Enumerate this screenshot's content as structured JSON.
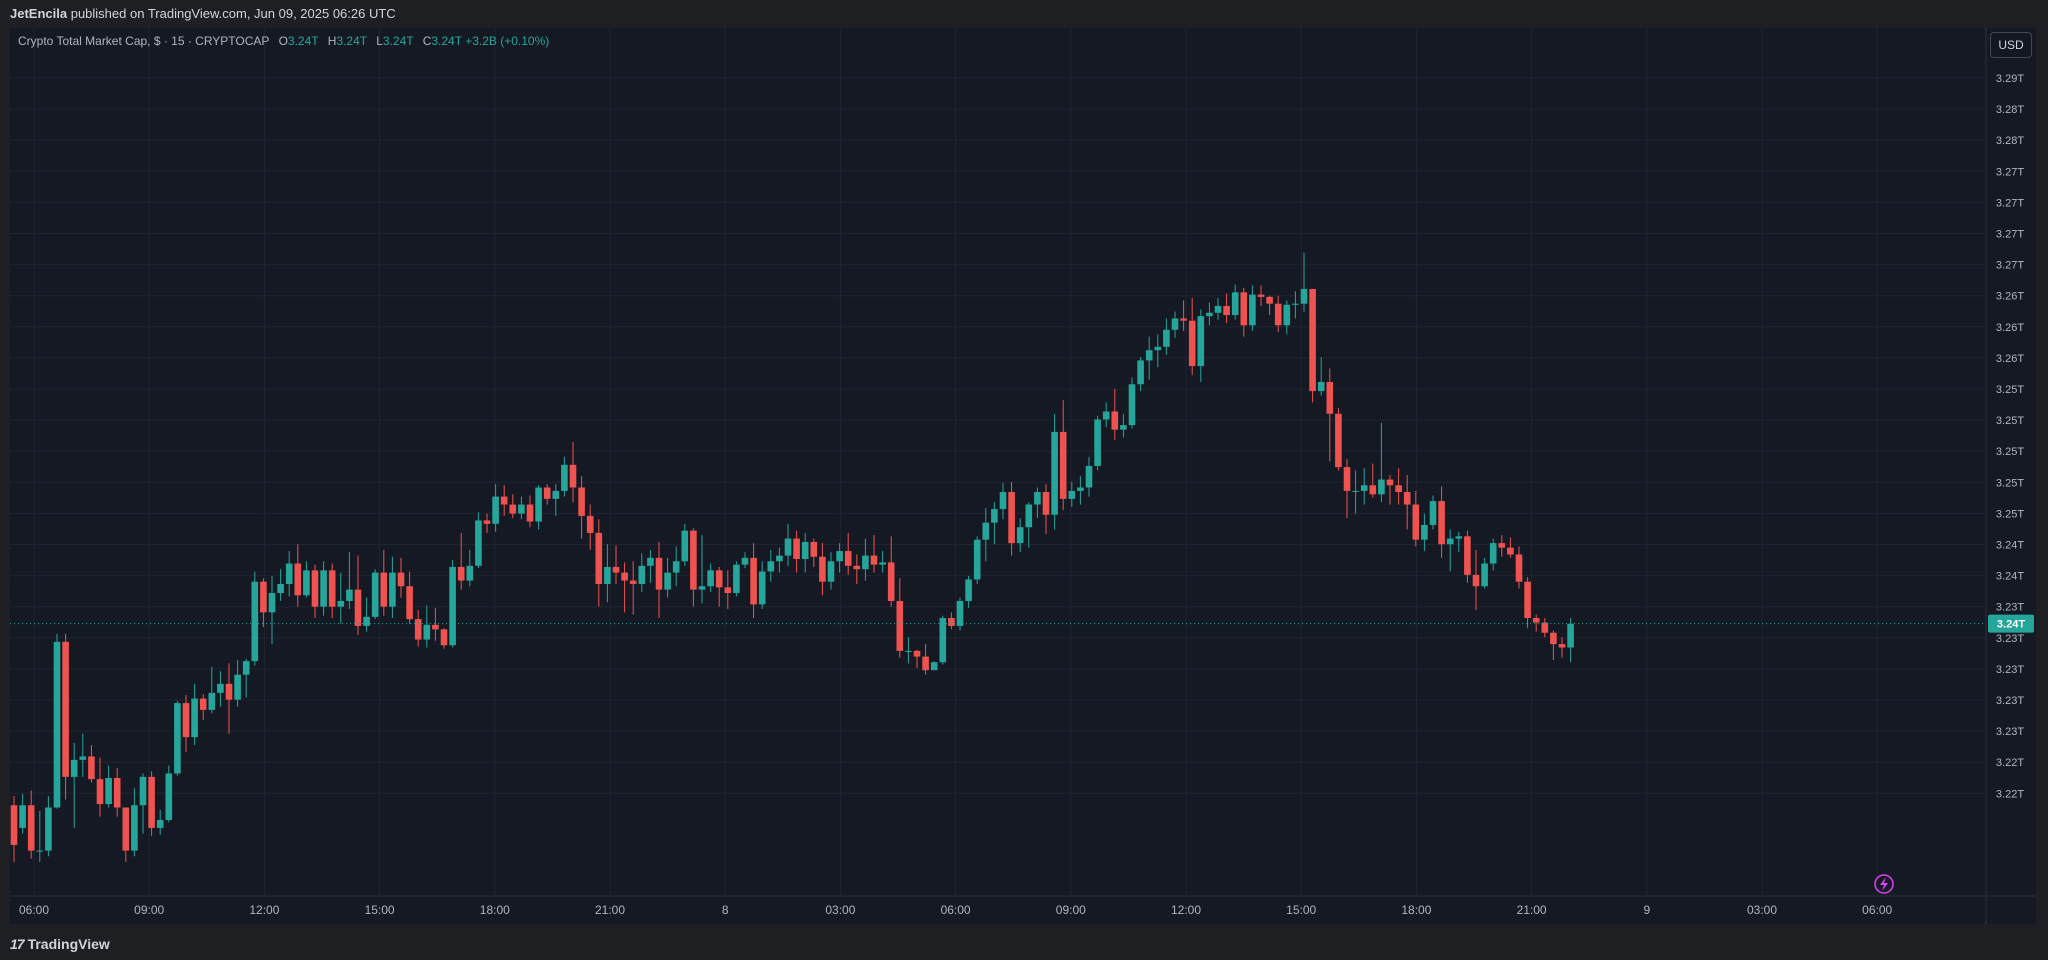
{
  "publish_line": {
    "author": "JetEncila",
    "text": "published on TradingView.com, Jun 09, 2025 06:26 UTC"
  },
  "legend": {
    "symbol": "Crypto Total Market Cap, $ · 15 · CRYPTOCAP",
    "o_label": "O",
    "o_value": "3.24T",
    "h_label": "H",
    "h_value": "3.24T",
    "l_label": "L",
    "l_value": "3.24T",
    "c_label": "C",
    "c_value": "3.24T",
    "change": "+3.2B (+0.10%)"
  },
  "currency_button": "USD",
  "price_axis": {
    "labels": [
      "3.29T",
      "3.28T",
      "3.28T",
      "3.27T",
      "3.27T",
      "3.27T",
      "3.27T",
      "3.26T",
      "3.26T",
      "3.26T",
      "3.25T",
      "3.25T",
      "3.25T",
      "3.25T",
      "3.25T",
      "3.24T",
      "3.24T",
      "3.23T",
      "3.23T",
      "3.23T",
      "3.23T",
      "3.23T",
      "3.22T",
      "3.22T"
    ],
    "current_price": "3.24T"
  },
  "time_axis": {
    "labels": [
      "06:00",
      "09:00",
      "12:00",
      "15:00",
      "18:00",
      "21:00",
      "8",
      "03:00",
      "06:00",
      "09:00",
      "12:00",
      "15:00",
      "18:00",
      "21:00",
      "9",
      "03:00",
      "06:00"
    ]
  },
  "colors": {
    "up": "#26a69a",
    "down": "#ef5350",
    "background": "#151924",
    "grid": "#1f2430"
  },
  "footer": {
    "brand": "TradingView"
  },
  "chart_data": {
    "type": "candlestick",
    "title": "Crypto Total Market Cap, $ · 15 · CRYPTOCAP",
    "interval": "15",
    "unit": "USD",
    "ylim": [
      3.2185,
      3.292
    ],
    "start_label": "06:00",
    "x_ticks": [
      "06:00",
      "09:00",
      "12:00",
      "15:00",
      "18:00",
      "21:00",
      "8",
      "03:00",
      "06:00",
      "09:00",
      "12:00",
      "15:00",
      "18:00",
      "21:00",
      "9",
      "03:00",
      "06:00"
    ],
    "current_price": 3.2425,
    "candles": [
      [
        3.2265,
        3.2273,
        3.2215,
        3.223
      ],
      [
        3.2245,
        3.2275,
        3.224,
        3.2265
      ],
      [
        3.2265,
        3.2278,
        3.2218,
        3.2225
      ],
      [
        3.2225,
        3.226,
        3.2215,
        3.2225
      ],
      [
        3.2225,
        3.2273,
        3.222,
        3.2263
      ],
      [
        3.2263,
        3.2416,
        3.2262,
        3.2409
      ],
      [
        3.2409,
        3.2416,
        3.227,
        3.229
      ],
      [
        3.229,
        3.232,
        3.2245,
        3.2305
      ],
      [
        3.2305,
        3.2328,
        3.229,
        3.2308
      ],
      [
        3.2308,
        3.2318,
        3.2285,
        3.2288
      ],
      [
        3.2288,
        3.2307,
        3.2255,
        3.2266
      ],
      [
        3.2266,
        3.23,
        3.2263,
        3.2289
      ],
      [
        3.2289,
        3.2298,
        3.2255,
        3.2263
      ],
      [
        3.2263,
        3.2263,
        3.2215,
        3.2225
      ],
      [
        3.2225,
        3.228,
        3.222,
        3.2265
      ],
      [
        3.2265,
        3.2293,
        3.224,
        3.229
      ],
      [
        3.229,
        3.2295,
        3.2238,
        3.2245
      ],
      [
        3.2245,
        3.2261,
        3.2239,
        3.2252
      ],
      [
        3.2252,
        3.23,
        3.225,
        3.2293
      ],
      [
        3.2293,
        3.2357,
        3.2291,
        3.2355
      ],
      [
        3.2355,
        3.2362,
        3.2312,
        3.2325
      ],
      [
        3.2325,
        3.2372,
        3.2318,
        3.2359
      ],
      [
        3.2359,
        3.2363,
        3.234,
        3.2349
      ],
      [
        3.2349,
        3.2387,
        3.2346,
        3.2364
      ],
      [
        3.2364,
        3.2383,
        3.2352,
        3.2372
      ],
      [
        3.2372,
        3.239,
        3.2328,
        3.2358
      ],
      [
        3.2358,
        3.2393,
        3.2352,
        3.238
      ],
      [
        3.238,
        3.2394,
        3.236,
        3.2392
      ],
      [
        3.2392,
        3.2471,
        3.2388,
        3.2462
      ],
      [
        3.2462,
        3.2465,
        3.2422,
        3.2435
      ],
      [
        3.2435,
        3.2467,
        3.2407,
        3.2452
      ],
      [
        3.2452,
        3.2473,
        3.2445,
        3.246
      ],
      [
        3.246,
        3.2489,
        3.2449,
        3.2478
      ],
      [
        3.2478,
        3.2495,
        3.244,
        3.245
      ],
      [
        3.245,
        3.248,
        3.2448,
        3.2472
      ],
      [
        3.2472,
        3.2477,
        3.243,
        3.244
      ],
      [
        3.244,
        3.248,
        3.2432,
        3.2472
      ],
      [
        3.2472,
        3.2478,
        3.243,
        3.244
      ],
      [
        3.244,
        3.247,
        3.2425,
        3.2445
      ],
      [
        3.2445,
        3.2488,
        3.2438,
        3.2455
      ],
      [
        3.2455,
        3.2485,
        3.2415,
        3.2423
      ],
      [
        3.2423,
        3.2448,
        3.2418,
        3.2431
      ],
      [
        3.2431,
        3.2473,
        3.2429,
        3.247
      ],
      [
        3.247,
        3.249,
        3.2432,
        3.244
      ],
      [
        3.244,
        3.2484,
        3.243,
        3.247
      ],
      [
        3.247,
        3.2483,
        3.2448,
        3.2458
      ],
      [
        3.2458,
        3.2471,
        3.2425,
        3.2429
      ],
      [
        3.2429,
        3.2437,
        3.2405,
        3.2411
      ],
      [
        3.2411,
        3.2441,
        3.2404,
        3.2424
      ],
      [
        3.2424,
        3.2439,
        3.241,
        3.242
      ],
      [
        3.242,
        3.2421,
        3.2403,
        3.2406
      ],
      [
        3.2406,
        3.2481,
        3.2404,
        3.2475
      ],
      [
        3.2475,
        3.2505,
        3.2455,
        3.2463
      ],
      [
        3.2463,
        3.249,
        3.2458,
        3.2476
      ],
      [
        3.2476,
        3.2523,
        3.2474,
        3.2516
      ],
      [
        3.2516,
        3.2522,
        3.2505,
        3.2513
      ],
      [
        3.2513,
        3.2548,
        3.2506,
        3.2537
      ],
      [
        3.2537,
        3.2547,
        3.252,
        3.253
      ],
      [
        3.253,
        3.2539,
        3.2518,
        3.2522
      ],
      [
        3.2522,
        3.2537,
        3.2517,
        3.253
      ],
      [
        3.253,
        3.2538,
        3.251,
        3.2515
      ],
      [
        3.2515,
        3.2547,
        3.2508,
        3.2545
      ],
      [
        3.2545,
        3.2548,
        3.253,
        3.2535
      ],
      [
        3.2535,
        3.2548,
        3.252,
        3.2542
      ],
      [
        3.2542,
        3.2572,
        3.2537,
        3.2565
      ],
      [
        3.2565,
        3.2585,
        3.2532,
        3.2545
      ],
      [
        3.2545,
        3.2555,
        3.25,
        3.252
      ],
      [
        3.252,
        3.253,
        3.249,
        3.2505
      ],
      [
        3.2505,
        3.2517,
        3.244,
        3.246
      ],
      [
        3.246,
        3.2495,
        3.2444,
        3.2475
      ],
      [
        3.2475,
        3.2494,
        3.246,
        3.247
      ],
      [
        3.247,
        3.2479,
        3.2435,
        3.2463
      ],
      [
        3.2463,
        3.248,
        3.2433,
        3.246
      ],
      [
        3.246,
        3.2487,
        3.2453,
        3.2476
      ],
      [
        3.2476,
        3.249,
        3.2461,
        3.2483
      ],
      [
        3.2483,
        3.2497,
        3.243,
        3.2455
      ],
      [
        3.2455,
        3.2483,
        3.2448,
        3.247
      ],
      [
        3.247,
        3.2493,
        3.2458,
        3.248
      ],
      [
        3.248,
        3.2513,
        3.2476,
        3.2507
      ],
      [
        3.2507,
        3.2509,
        3.244,
        3.2455
      ],
      [
        3.2455,
        3.2503,
        3.2443,
        3.2458
      ],
      [
        3.2458,
        3.2478,
        3.2453,
        3.2472
      ],
      [
        3.2472,
        3.2475,
        3.244,
        3.2457
      ],
      [
        3.2457,
        3.2472,
        3.2438,
        3.2452
      ],
      [
        3.2452,
        3.248,
        3.2449,
        3.2477
      ],
      [
        3.2477,
        3.2488,
        3.2474,
        3.2483
      ],
      [
        3.2483,
        3.2496,
        3.243,
        3.2442
      ],
      [
        3.2442,
        3.248,
        3.2438,
        3.2471
      ],
      [
        3.2471,
        3.249,
        3.2462,
        3.248
      ],
      [
        3.248,
        3.2492,
        3.247,
        3.2485
      ],
      [
        3.2485,
        3.2513,
        3.2476,
        3.25
      ],
      [
        3.25,
        3.2507,
        3.247,
        3.2482
      ],
      [
        3.2482,
        3.2505,
        3.247,
        3.2497
      ],
      [
        3.2497,
        3.25,
        3.2475,
        3.2484
      ],
      [
        3.2484,
        3.2496,
        3.245,
        3.2462
      ],
      [
        3.2462,
        3.2488,
        3.2455,
        3.248
      ],
      [
        3.248,
        3.2496,
        3.247,
        3.2489
      ],
      [
        3.2489,
        3.2505,
        3.2468,
        3.2476
      ],
      [
        3.2476,
        3.2486,
        3.246,
        3.2473
      ],
      [
        3.2473,
        3.25,
        3.2463,
        3.2485
      ],
      [
        3.2485,
        3.2503,
        3.247,
        3.2477
      ],
      [
        3.2477,
        3.2489,
        3.247,
        3.2479
      ],
      [
        3.2479,
        3.2502,
        3.244,
        3.2445
      ],
      [
        3.2445,
        3.2465,
        3.2395,
        3.2401
      ],
      [
        3.2401,
        3.2413,
        3.239,
        3.2401
      ],
      [
        3.2401,
        3.2402,
        3.2386,
        3.2396
      ],
      [
        3.2396,
        3.2407,
        3.238,
        3.2384
      ],
      [
        3.2384,
        3.2392,
        3.2384,
        3.2391
      ],
      [
        3.2391,
        3.2432,
        3.2389,
        3.243
      ],
      [
        3.243,
        3.2435,
        3.242,
        3.2423
      ],
      [
        3.2423,
        3.2448,
        3.2419,
        3.2445
      ],
      [
        3.2445,
        3.2467,
        3.2439,
        3.2464
      ],
      [
        3.2464,
        3.2502,
        3.246,
        3.2499
      ],
      [
        3.2499,
        3.2527,
        3.248,
        3.2514
      ],
      [
        3.2514,
        3.2532,
        3.2495,
        3.2526
      ],
      [
        3.2526,
        3.2549,
        3.2517,
        3.2541
      ],
      [
        3.2541,
        3.255,
        3.2485,
        3.2496
      ],
      [
        3.2496,
        3.2518,
        3.2488,
        3.251
      ],
      [
        3.251,
        3.2532,
        3.2492,
        3.253
      ],
      [
        3.253,
        3.2545,
        3.2518,
        3.2541
      ],
      [
        3.2541,
        3.2548,
        3.2504,
        3.2521
      ],
      [
        3.2521,
        3.261,
        3.2508,
        3.2594
      ],
      [
        3.2594,
        3.2622,
        3.2525,
        3.2535
      ],
      [
        3.2535,
        3.255,
        3.2528,
        3.2542
      ],
      [
        3.2542,
        3.2555,
        3.253,
        3.2545
      ],
      [
        3.2545,
        3.2572,
        3.2537,
        3.2564
      ],
      [
        3.2564,
        3.2608,
        3.256,
        3.2605
      ],
      [
        3.2605,
        3.262,
        3.2598,
        3.2612
      ],
      [
        3.2612,
        3.2632,
        3.2587,
        3.2596
      ],
      [
        3.2596,
        3.261,
        3.2589,
        3.26
      ],
      [
        3.26,
        3.2642,
        3.2597,
        3.2636
      ],
      [
        3.2636,
        3.266,
        3.263,
        3.2657
      ],
      [
        3.2657,
        3.2678,
        3.264,
        3.2666
      ],
      [
        3.2666,
        3.268,
        3.2651,
        3.2669
      ],
      [
        3.2669,
        3.2694,
        3.2662,
        3.2684
      ],
      [
        3.2684,
        3.27,
        3.2677,
        3.2694
      ],
      [
        3.2694,
        3.271,
        3.2683,
        3.2692
      ],
      [
        3.2692,
        3.2712,
        3.2644,
        3.2652
      ],
      [
        3.2652,
        3.2702,
        3.2638,
        3.2696
      ],
      [
        3.2696,
        3.2708,
        3.2688,
        3.2699
      ],
      [
        3.2699,
        3.2712,
        3.2693,
        3.2705
      ],
      [
        3.2705,
        3.2716,
        3.269,
        3.2697
      ],
      [
        3.2697,
        3.2724,
        3.2693,
        3.2717
      ],
      [
        3.2717,
        3.2721,
        3.2678,
        3.2688
      ],
      [
        3.2688,
        3.2723,
        3.2683,
        3.2715
      ],
      [
        3.2715,
        3.2723,
        3.2705,
        3.2713
      ],
      [
        3.2713,
        3.2714,
        3.2697,
        3.2707
      ],
      [
        3.2707,
        3.2714,
        3.2682,
        3.2688
      ],
      [
        3.2688,
        3.271,
        3.268,
        3.2706
      ],
      [
        3.2706,
        3.2718,
        3.2694,
        3.2707
      ],
      [
        3.2707,
        3.2752,
        3.27,
        3.272
      ],
      [
        3.272,
        3.272,
        3.262,
        3.263
      ],
      [
        3.263,
        3.266,
        3.2626,
        3.2638
      ],
      [
        3.2638,
        3.265,
        3.2568,
        3.261
      ],
      [
        3.261,
        3.2615,
        3.256,
        3.2563
      ],
      [
        3.2563,
        3.257,
        3.2518,
        3.2542
      ],
      [
        3.2542,
        3.256,
        3.2522,
        3.2542
      ],
      [
        3.2542,
        3.2562,
        3.253,
        3.2547
      ],
      [
        3.2547,
        3.2566,
        3.2536,
        3.2539
      ],
      [
        3.2539,
        3.2602,
        3.2532,
        3.2552
      ],
      [
        3.2552,
        3.2556,
        3.253,
        3.2547
      ],
      [
        3.2547,
        3.2562,
        3.253,
        3.2541
      ],
      [
        3.2541,
        3.2556,
        3.2508,
        3.253
      ],
      [
        3.253,
        3.2542,
        3.2493,
        3.2499
      ],
      [
        3.2499,
        3.2522,
        3.2489,
        3.2512
      ],
      [
        3.2512,
        3.2538,
        3.2508,
        3.2533
      ],
      [
        3.2533,
        3.2546,
        3.2483,
        3.2495
      ],
      [
        3.2495,
        3.2508,
        3.2471,
        3.25
      ],
      [
        3.25,
        3.2506,
        3.2488,
        3.2502
      ],
      [
        3.2502,
        3.2507,
        3.2461,
        3.2468
      ],
      [
        3.2468,
        3.249,
        3.2437,
        3.2458
      ],
      [
        3.2458,
        3.2483,
        3.2456,
        3.2478
      ],
      [
        3.2478,
        3.25,
        3.2472,
        3.2496
      ],
      [
        3.2496,
        3.2503,
        3.2484,
        3.2492
      ],
      [
        3.2492,
        3.2501,
        3.2483,
        3.2486
      ],
      [
        3.2486,
        3.2493,
        3.2456,
        3.2462
      ],
      [
        3.2462,
        3.2466,
        3.2421,
        3.243
      ],
      [
        3.243,
        3.2433,
        3.2418,
        3.2426
      ],
      [
        3.2426,
        3.243,
        3.2413,
        3.2417
      ],
      [
        3.2417,
        3.2419,
        3.2393,
        3.2407
      ],
      [
        3.2407,
        3.2413,
        3.2395,
        3.2404
      ],
      [
        3.2404,
        3.243,
        3.2391,
        3.2425
      ]
    ]
  }
}
